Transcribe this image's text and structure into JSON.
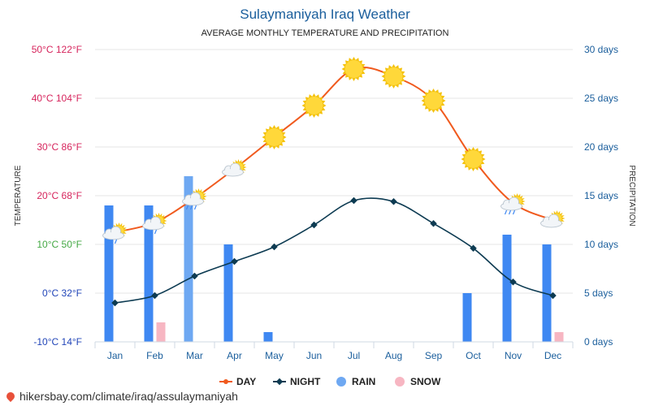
{
  "header": {
    "title": "Sulaymaniyah Iraq Weather",
    "subtitle": "AVERAGE MONTHLY TEMPERATURE AND PRECIPITATION"
  },
  "footer": {
    "url": "hikersbay.com/climate/iraq/assulaymaniyah"
  },
  "colors": {
    "day": "#f05a1e",
    "night": "#0d3b52",
    "rain_dark": "#3f88f2",
    "rain_light": "#6ea8f2",
    "snow": "#f7b6c2",
    "grid": "#e6e6e6"
  },
  "chart_data": {
    "type": "line",
    "title": "Sulaymaniyah Iraq Weather",
    "subtitle": "AVERAGE MONTHLY TEMPERATURE AND PRECIPITATION",
    "ylabel_left": "TEMPERATURE",
    "ylabel_right": "PRECIPITATION",
    "categories": [
      "Jan",
      "Feb",
      "Mar",
      "Apr",
      "May",
      "Jun",
      "Jul",
      "Aug",
      "Sep",
      "Oct",
      "Nov",
      "Dec"
    ],
    "ylim_left": [
      -10,
      50
    ],
    "ylim_right": [
      0,
      30
    ],
    "left_ticks": [
      {
        "value": 50,
        "label": "50°C 122°F",
        "color": "#d6245c"
      },
      {
        "value": 40,
        "label": "40°C 104°F",
        "color": "#d6245c"
      },
      {
        "value": 30,
        "label": "30°C 86°F",
        "color": "#d6245c"
      },
      {
        "value": 20,
        "label": "20°C 68°F",
        "color": "#d6245c"
      },
      {
        "value": 10,
        "label": "10°C 50°F",
        "color": "#43a843"
      },
      {
        "value": 0,
        "label": "0°C 32°F",
        "color": "#2145b8"
      },
      {
        "value": -10,
        "label": "-10°C 14°F",
        "color": "#2145b8"
      }
    ],
    "right_ticks": [
      {
        "value": 30,
        "label": "30 days"
      },
      {
        "value": 25,
        "label": "25 days"
      },
      {
        "value": 20,
        "label": "20 days"
      },
      {
        "value": 15,
        "label": "15 days"
      },
      {
        "value": 10,
        "label": "10 days"
      },
      {
        "value": 5,
        "label": "5 days"
      },
      {
        "value": 0,
        "label": "0 days"
      }
    ],
    "series": [
      {
        "name": "DAY",
        "values": [
          12.5,
          14.5,
          19.5,
          25.5,
          32,
          38.5,
          46,
          44.5,
          39.5,
          27.5,
          18.5,
          15
        ]
      },
      {
        "name": "NIGHT",
        "values": [
          -2,
          -0.5,
          3.5,
          6.5,
          9.5,
          14,
          19,
          18.8,
          14.3,
          9.2,
          2.3,
          -0.5
        ]
      },
      {
        "name": "RAIN",
        "values": [
          14,
          14,
          17,
          10,
          1,
          0,
          0,
          0,
          0,
          5,
          11,
          10
        ]
      },
      {
        "name": "SNOW",
        "values": [
          0,
          2,
          0,
          0,
          0,
          0,
          0,
          0,
          0,
          0,
          0,
          1
        ]
      }
    ],
    "weather_icons": [
      "partly-cloudy-rain-icon",
      "partly-cloudy-rain-icon",
      "partly-cloudy-rain-icon",
      "partly-cloudy-icon",
      "sun-icon",
      "sun-icon",
      "sun-icon",
      "sun-icon",
      "sun-icon",
      "sun-icon",
      "partly-cloudy-rain-icon",
      "partly-cloudy-icon"
    ],
    "legend": {
      "position": "bottom",
      "items": [
        "DAY",
        "NIGHT",
        "RAIN",
        "SNOW"
      ]
    },
    "grid": true
  }
}
